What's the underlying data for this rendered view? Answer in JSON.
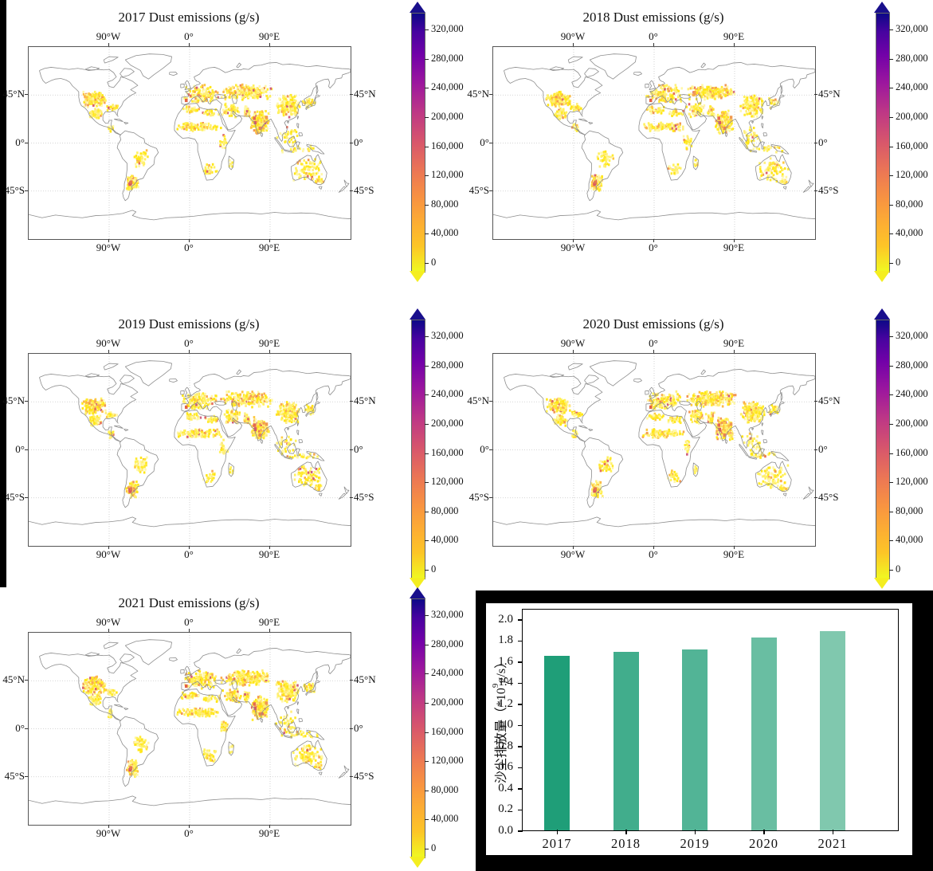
{
  "figure": {
    "map_panels": [
      {
        "title": "2017 Dust emissions (g/s)"
      },
      {
        "title": "2018 Dust emissions (g/s)"
      },
      {
        "title": "2019 Dust emissions (g/s)"
      },
      {
        "title": "2020 Dust emissions (g/s)"
      },
      {
        "title": "2021 Dust emissions (g/s)"
      }
    ],
    "map_axes": {
      "lon_labels": [
        "90°W",
        "0°",
        "90°E"
      ],
      "lat_labels": [
        "45°N",
        "0°",
        "45°S"
      ]
    },
    "colorbar": {
      "labels": [
        "0",
        "40,000",
        "80,000",
        "120,000",
        "160,000",
        "200,000",
        "240,000",
        "280,000",
        "320,000"
      ],
      "low_color": "#f0f921",
      "high_color": "#0d0887"
    },
    "bar_chart": {
      "ylabel_prefix": "沙尘排放量（*10",
      "ylabel_sup": "9",
      "ylabel_suffix": "g/s）",
      "ytick_labels": [
        "0.0",
        "0.2",
        "0.4",
        "0.6",
        "0.8",
        "1.0",
        "1.2",
        "1.4",
        "1.6",
        "1.8",
        "2.0"
      ]
    }
  },
  "chart_data": [
    {
      "type": "heatmap",
      "title": "2017 Dust emissions (g/s)",
      "projection": "equirectangular",
      "lon_range": [
        -180,
        180
      ],
      "lat_range": [
        -90,
        90
      ],
      "lon_ticks_deg": [
        -90,
        0,
        90
      ],
      "lat_ticks_deg": [
        45,
        0,
        -45
      ],
      "colorbar_ticks": [
        0,
        40000,
        80000,
        120000,
        160000,
        200000,
        240000,
        280000,
        320000
      ],
      "colormap": "plasma reversed (yellow = low, dark blue = high), arrow extensions both ends",
      "high_emission_regions": [
        "central/western North America",
        "Pampas of Argentina (local magenta maximum)",
        "Sahel and northern Africa",
        "Europe",
        "Pontic-Caspian and Central Asian steppe",
        "Indian subcontinent (red spots west India)",
        "eastern China",
        "southeastern Australia"
      ]
    },
    {
      "type": "heatmap",
      "title": "2018 Dust emissions (g/s)",
      "projection": "equirectangular",
      "lon_range": [
        -180,
        180
      ],
      "lat_range": [
        -90,
        90
      ],
      "lon_ticks_deg": [
        -90,
        0,
        90
      ],
      "lat_ticks_deg": [
        45,
        0,
        -45
      ],
      "colorbar_ticks": [
        0,
        40000,
        80000,
        120000,
        160000,
        200000,
        240000,
        280000,
        320000
      ],
      "colormap": "plasma reversed (yellow = low, dark blue = high), arrow extensions both ends",
      "high_emission_regions": [
        "central/western North America",
        "Pampas of Argentina (local magenta maximum)",
        "Sahel and northern Africa",
        "Europe",
        "Pontic-Caspian and Central Asian steppe",
        "Indian subcontinent",
        "eastern China",
        "southeastern Australia"
      ]
    },
    {
      "type": "heatmap",
      "title": "2019 Dust emissions (g/s)",
      "projection": "equirectangular",
      "lon_range": [
        -180,
        180
      ],
      "lat_range": [
        -90,
        90
      ],
      "lon_ticks_deg": [
        -90,
        0,
        90
      ],
      "lat_ticks_deg": [
        45,
        0,
        -45
      ],
      "colorbar_ticks": [
        0,
        40000,
        80000,
        120000,
        160000,
        200000,
        240000,
        280000,
        320000
      ],
      "colormap": "plasma reversed (yellow = low, dark blue = high), arrow extensions both ends",
      "high_emission_regions": [
        "central/western North America",
        "Pampas of Argentina (local magenta maximum)",
        "Sahel and northern Africa",
        "Europe (orange spot in Spain)",
        "Pontic-Caspian and Central Asian steppe",
        "Indian subcontinent",
        "eastern China",
        "southeastern Australia"
      ]
    },
    {
      "type": "heatmap",
      "title": "2020 Dust emissions (g/s)",
      "projection": "equirectangular",
      "lon_range": [
        -180,
        180
      ],
      "lat_range": [
        -90,
        90
      ],
      "lon_ticks_deg": [
        -90,
        0,
        90
      ],
      "lat_ticks_deg": [
        45,
        0,
        -45
      ],
      "colorbar_ticks": [
        0,
        40000,
        80000,
        120000,
        160000,
        200000,
        240000,
        280000,
        320000
      ],
      "colormap": "plasma reversed (yellow = low, dark blue = high), arrow extensions both ends",
      "high_emission_regions": [
        "central/western North America",
        "Pampas of Argentina (local magenta maximum)",
        "Sahel and northern Africa",
        "Europe",
        "Pontic-Caspian and Central Asian steppe",
        "Indian subcontinent",
        "eastern China",
        "southeastern Australia"
      ]
    },
    {
      "type": "heatmap",
      "title": "2021 Dust emissions (g/s)",
      "projection": "equirectangular",
      "lon_range": [
        -180,
        180
      ],
      "lat_range": [
        -90,
        90
      ],
      "lon_ticks_deg": [
        -90,
        0,
        90
      ],
      "lat_ticks_deg": [
        45,
        0,
        -45
      ],
      "colorbar_ticks": [
        0,
        40000,
        80000,
        120000,
        160000,
        200000,
        240000,
        280000,
        320000
      ],
      "colormap": "plasma reversed (yellow = low, dark blue = high), arrow extensions both ends",
      "high_emission_regions": [
        "central/western North America",
        "Pampas of Argentina (local magenta maximum)",
        "Sahel and northern Africa",
        "Europe",
        "Pontic-Caspian and Central Asian steppe",
        "Indian subcontinent (red spots west India)",
        "eastern China",
        "southeastern Australia"
      ]
    },
    {
      "type": "bar",
      "title": "",
      "xlabel": "",
      "ylabel": "沙尘排放量（*10⁹g/s）",
      "categories": [
        "2017",
        "2018",
        "2019",
        "2020",
        "2021"
      ],
      "values": [
        1.65,
        1.69,
        1.71,
        1.83,
        1.89
      ],
      "ylim": [
        0,
        2.0
      ],
      "ytick_step": 0.2,
      "bar_colors": [
        "#1f9e78",
        "#41ad8c",
        "#52b496",
        "#69bea2",
        "#80c8ae"
      ],
      "grid": false,
      "legend": null
    }
  ]
}
